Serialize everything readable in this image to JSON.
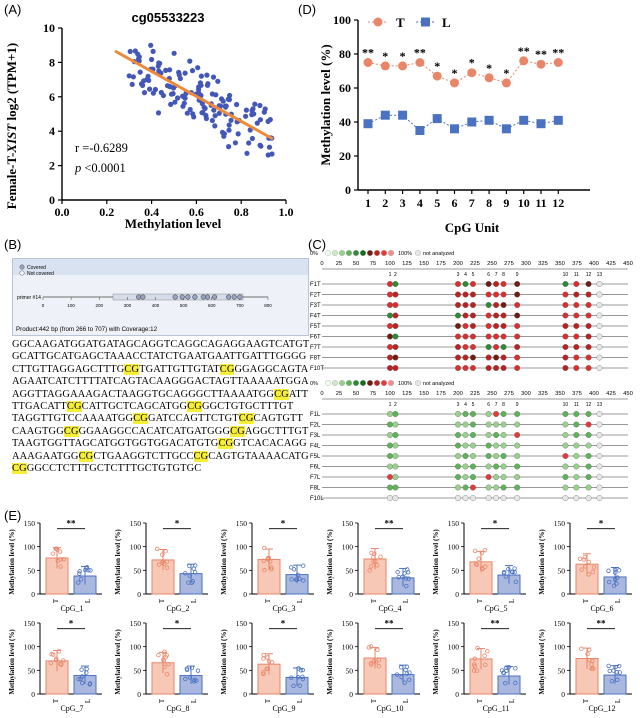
{
  "panelA": {
    "label": "(A)",
    "title": "cg05533223",
    "ylabel_prefix": "Female-T-",
    "ylabel_gene": "XIST",
    "ylabel_suffix": " log2 (TPM+1)",
    "xlabel": "Methylation level",
    "r_text": "r =-0.6289",
    "p_text": "p <0.0001",
    "xticks": [
      "0.0",
      "0.2",
      "0.4",
      "0.6",
      "0.8",
      "1.0"
    ],
    "yticks": [
      "0",
      "2",
      "4",
      "6",
      "8",
      "10"
    ]
  },
  "panelB": {
    "label": "(B)",
    "legend_covered": "Covered",
    "legend_not_covered": "Not covered",
    "primer_label": "primer #14",
    "scale_ticks": [
      "0",
      "100",
      "200",
      "300",
      "400",
      "500",
      "600",
      "700",
      "800"
    ],
    "product_text": "Product:442 bp (from 266 to 707) with Coverage:12",
    "sequence_lines": [
      "GGCAAGATGGATGATAGCAGGTCAGGCAGAGGAAGTCATGT",
      "GCATTGCATGAGCTAAACCTATCTGAATGAATTGATTTGGGG",
      "CTTGTTAGGAGCTTTG[CG]TGATTGTTGTAT[CG]GGAGGCAGTA",
      "AGAATCATCTTTTATCAGTACAAGGGACTAGTTAAAAATGGA",
      "AGGTTAGGAAAGACTAAGGTGCAGGGCTTAAAATGG[CG]ATT",
      "TTGACATT[CG]CATTGCTCAGCATGG[CG]GGCTGTGCTTTGT",
      "TAGGTTGTCCAAAATGG[CG]GATCCAGTTCTGT[CG]CAGTGTT",
      "CAAGTGG[CG]GGAAGGCCACATCATGATGGG[CG]AGGCTTTGT",
      "TAAGTGGTTAGCATGGTGGTGGACATGTG[CG]GTCACACAGG",
      "AAAGAATGG[CG]CTGAAGGTCTTGCC[CG]CAGTGTAAAACATG",
      "[CG]GGCCTCTTTGCTCTTTGCTGTGTGC"
    ]
  },
  "panelC": {
    "label": "(C)",
    "legend_pct_left": "0%",
    "legend_pct_right": "100%",
    "legend_na": "not analyzed",
    "scale_ticks": [
      "0",
      "25",
      "50",
      "75",
      "100",
      "125",
      "150",
      "175",
      "200",
      "225",
      "250",
      "275",
      "300",
      "325",
      "350",
      "375",
      "400",
      "425",
      "450"
    ],
    "cpg_numbers": [
      "1",
      "2",
      "3",
      "4",
      "5",
      "6",
      "7",
      "8",
      "9",
      "10",
      "11",
      "12",
      "13"
    ],
    "t_rows": [
      "F1T",
      "F2T",
      "F3T",
      "F4T",
      "F5T",
      "F6T",
      "F7T",
      "F8T",
      "F10T"
    ],
    "l_rows": [
      "F1L",
      "F2L",
      "F3L",
      "F4L",
      "F5L",
      "F6L",
      "F7L",
      "F8L",
      "F10L"
    ]
  },
  "panelD": {
    "label": "(D)",
    "ylabel": "Methylation level (%)",
    "xlabel": "CpG Unit",
    "legend_T": "T",
    "legend_L": "L",
    "color_T": "#e9866a",
    "color_L": "#4b72c0",
    "chart_data": {
      "type": "line",
      "x": [
        "1",
        "2",
        "3",
        "4",
        "5",
        "6",
        "7",
        "8",
        "9",
        "10",
        "11",
        "12"
      ],
      "series": [
        {
          "name": "T",
          "values": [
            75,
            73,
            73,
            75,
            67,
            63,
            69,
            66,
            63,
            76,
            74,
            75
          ]
        },
        {
          "name": "L",
          "values": [
            39,
            44,
            44,
            35,
            42,
            36,
            40,
            41,
            36,
            41,
            39,
            41
          ]
        }
      ],
      "significance": [
        "**",
        "*",
        "*",
        "**",
        "*",
        "*",
        "*",
        "*",
        "*",
        "**",
        "**",
        "**"
      ],
      "ylim": [
        0,
        100
      ],
      "yticks": [
        "0",
        "20",
        "40",
        "60",
        "80",
        "100"
      ]
    }
  },
  "panelE": {
    "label": "(E)",
    "ylabel": "Methylation level (%)",
    "group_T": "T",
    "group_L": "L",
    "yticks": [
      "0",
      "50",
      "100",
      "150"
    ],
    "chart_data": {
      "type": "bar",
      "plots": [
        {
          "name": "CpG_1",
          "T": 76,
          "L": 38,
          "sig": "**"
        },
        {
          "name": "CpG_2",
          "T": 72,
          "L": 43,
          "sig": "*"
        },
        {
          "name": "CpG_3",
          "T": 73,
          "L": 41,
          "sig": "*"
        },
        {
          "name": "CpG_4",
          "T": 74,
          "L": 34,
          "sig": "**"
        },
        {
          "name": "CpG_5",
          "T": 68,
          "L": 40,
          "sig": "*"
        },
        {
          "name": "CpG_6",
          "T": 63,
          "L": 36,
          "sig": "*"
        },
        {
          "name": "CpG_7",
          "T": 70,
          "L": 39,
          "sig": "*"
        },
        {
          "name": "CpG_8",
          "T": 66,
          "L": 39,
          "sig": "*"
        },
        {
          "name": "CpG_9",
          "T": 63,
          "L": 35,
          "sig": "*"
        },
        {
          "name": "CpG_10",
          "T": 76,
          "L": 41,
          "sig": "**"
        },
        {
          "name": "CpG_11",
          "T": 74,
          "L": 38,
          "sig": "**"
        },
        {
          "name": "CpG_12",
          "T": 75,
          "L": 40,
          "sig": "**"
        }
      ],
      "ylim": [
        0,
        150
      ]
    }
  }
}
